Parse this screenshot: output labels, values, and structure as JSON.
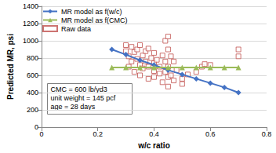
{
  "chart_data": {
    "type": "line",
    "x_label": "w/c ratio",
    "y_label": "Predicted MR, psi",
    "xlim": [
      0,
      0.8
    ],
    "xticks": [
      0,
      0.2,
      0.4,
      0.6,
      0.8
    ],
    "ylim": [
      0,
      1400
    ],
    "yticks": [
      0,
      200,
      400,
      600,
      800,
      1000,
      1200,
      1400
    ],
    "grid": true,
    "legend": "upper left",
    "annotation": [
      "CMC = 600 lb/yd3",
      "unit weight = 145 pcf",
      "age = 28 days"
    ],
    "series": [
      {
        "name": "MR model as f(w/c)",
        "type": "line",
        "color": "#4472c4",
        "marker": "diamond",
        "line_style": "solid",
        "x": [
          0.25,
          0.3,
          0.35,
          0.4,
          0.45,
          0.5,
          0.55,
          0.6,
          0.65,
          0.7
        ],
        "values": [
          900,
          840,
          775,
          720,
          660,
          610,
          560,
          510,
          460,
          400
        ]
      },
      {
        "name": "MR model as f(CMC)",
        "type": "line",
        "color": "#9bbb59",
        "marker": "triangle",
        "line_style": "solid",
        "x": [
          0.25,
          0.3,
          0.35,
          0.4,
          0.45,
          0.5,
          0.55,
          0.6,
          0.65,
          0.7
        ],
        "values": [
          690,
          690,
          690,
          690,
          690,
          690,
          690,
          690,
          690,
          690
        ]
      },
      {
        "name": "Raw data",
        "type": "scatter",
        "color": "#c0504d",
        "marker": "square-open",
        "x": [
          0.3,
          0.3,
          0.31,
          0.31,
          0.32,
          0.32,
          0.33,
          0.33,
          0.34,
          0.34,
          0.35,
          0.35,
          0.35,
          0.36,
          0.36,
          0.37,
          0.37,
          0.38,
          0.38,
          0.38,
          0.39,
          0.4,
          0.4,
          0.4,
          0.4,
          0.41,
          0.42,
          0.42,
          0.43,
          0.43,
          0.44,
          0.44,
          0.44,
          0.45,
          0.45,
          0.45,
          0.45,
          0.45,
          0.46,
          0.46,
          0.47,
          0.47,
          0.48,
          0.5,
          0.5,
          0.52,
          0.55,
          0.57,
          0.58,
          0.6,
          0.7,
          0.7
        ],
        "values": [
          950,
          880,
          820,
          700,
          930,
          760,
          870,
          640,
          900,
          790,
          950,
          720,
          600,
          830,
          680,
          880,
          760,
          910,
          700,
          560,
          800,
          860,
          740,
          650,
          580,
          780,
          700,
          620,
          830,
          520,
          1000,
          760,
          640,
          1050,
          900,
          700,
          580,
          470,
          820,
          600,
          760,
          540,
          660,
          560,
          500,
          610,
          640,
          700,
          730,
          720,
          900,
          820
        ]
      }
    ]
  }
}
